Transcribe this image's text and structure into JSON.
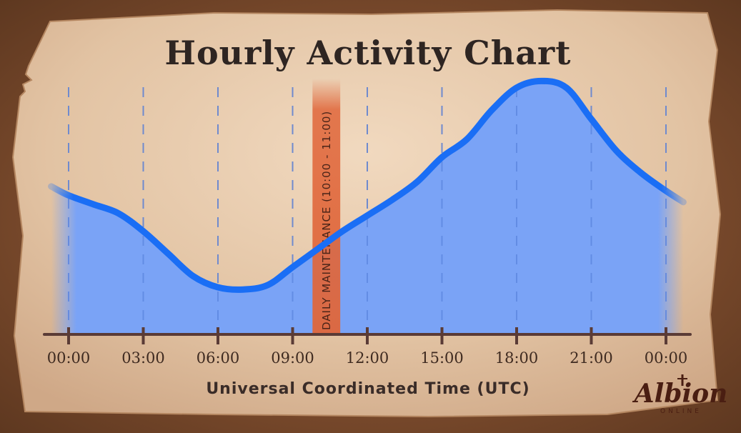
{
  "chart_data": {
    "type": "area",
    "title": "Hourly Activity Chart",
    "xlabel": "Universal Coordinated Time (UTC)",
    "ylabel": "",
    "x": [
      -0.7,
      0,
      1,
      2,
      3,
      4,
      5,
      6,
      7,
      8,
      9,
      10,
      11,
      12,
      13,
      14,
      15,
      16,
      17,
      18,
      19,
      20,
      21,
      22,
      23,
      24,
      24.7
    ],
    "series": [
      {
        "values": [
          0.66,
          0.62,
          0.58,
          0.54,
          0.46,
          0.36,
          0.26,
          0.21,
          0.2,
          0.22,
          0.3,
          0.38,
          0.46,
          0.53,
          0.6,
          0.68,
          0.79,
          0.87,
          1.0,
          1.1,
          1.13,
          1.1,
          0.96,
          0.82,
          0.72,
          0.64,
          0.59
        ]
      }
    ],
    "xtick_labels": [
      "00:00",
      "03:00",
      "06:00",
      "09:00",
      "12:00",
      "15:00",
      "18:00",
      "21:00",
      "00:00"
    ],
    "xtick_hours": [
      0,
      3,
      6,
      9,
      12,
      15,
      18,
      21,
      24
    ],
    "xlim": [
      -0.9,
      24.9
    ],
    "ylim": [
      0,
      1.3
    ],
    "grid": "vertical-dashed",
    "legend": "none",
    "annotations": [
      {
        "label": "DAILY MAINTENANCE (10:00 - 11:00)",
        "start": 10,
        "end": 11
      }
    ],
    "colors": {
      "line": "#1a6ef5",
      "fill": "#7aa3f6",
      "band": "#e0663a",
      "parchment": "#e9cdae",
      "axis": "#5a3b36"
    }
  },
  "logo": {
    "main": "Albion",
    "sub": "ONLINE"
  }
}
